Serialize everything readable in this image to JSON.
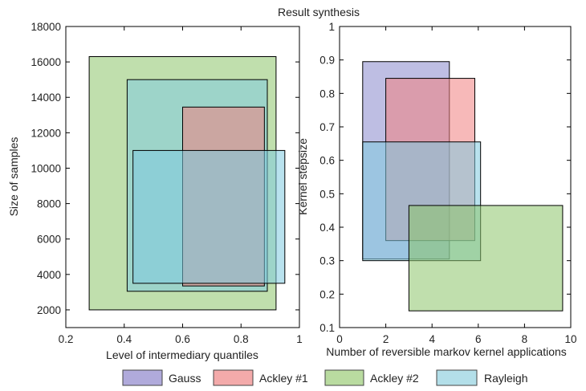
{
  "chart_data": {
    "title": "Result synthesis",
    "type": "box",
    "series_colors": {
      "Gauss": "#8888cc",
      "Ackley #1": "#f08080",
      "Ackley #2": "#8dc46a",
      "Rayleigh": "#7fcbe0"
    },
    "legend": {
      "placement": "bottom",
      "entries": [
        "Gauss",
        "Ackley #1",
        "Ackley #2",
        "Rayleigh"
      ]
    },
    "charts": [
      {
        "xlabel": "Level of intermediary quantiles",
        "ylabel": "Size of samples",
        "xlim": [
          0.2,
          1.0
        ],
        "ylim": [
          1000,
          18000
        ],
        "xticks": [
          "0.2",
          "0.4",
          "0.6",
          "0.8",
          "1"
        ],
        "yticks": [
          "2000",
          "4000",
          "6000",
          "8000",
          "10000",
          "12000",
          "14000",
          "16000",
          "18000"
        ],
        "xtick_values": [
          0.2,
          0.4,
          0.6,
          0.8,
          1.0
        ],
        "ytick_values": [
          2000,
          4000,
          6000,
          8000,
          10000,
          12000,
          14000,
          16000,
          18000
        ],
        "boxes": [
          {
            "series": "Ackley #2",
            "x": [
              0.28,
              0.92
            ],
            "y": [
              2000,
              16300
            ]
          },
          {
            "series": "Rayleigh",
            "x": [
              0.41,
              0.89
            ],
            "y": [
              3050,
              15000
            ]
          },
          {
            "series": "Ackley #1",
            "x": [
              0.6,
              0.88
            ],
            "y": [
              3350,
              13450
            ]
          },
          {
            "series": "Rayleigh",
            "x": [
              0.43,
              0.95
            ],
            "y": [
              3500,
              11000
            ]
          }
        ]
      },
      {
        "xlabel": "Number of reversible markov kernel applications",
        "ylabel": "Kernel stepsize",
        "xlim": [
          0,
          10
        ],
        "ylim": [
          0.1,
          1.0
        ],
        "xticks": [
          "0",
          "2",
          "4",
          "6",
          "8",
          "10"
        ],
        "yticks": [
          "0.1",
          "0.2",
          "0.3",
          "0.4",
          "0.5",
          "0.6",
          "0.7",
          "0.8",
          "0.9",
          "1"
        ],
        "xtick_values": [
          0,
          2,
          4,
          6,
          8,
          10
        ],
        "ytick_values": [
          0.1,
          0.2,
          0.3,
          0.4,
          0.5,
          0.6,
          0.7,
          0.8,
          0.9,
          1.0
        ],
        "boxes": [
          {
            "series": "Gauss",
            "x": [
              1.0,
              4.75
            ],
            "y": [
              0.305,
              0.895
            ]
          },
          {
            "series": "Ackley #1",
            "x": [
              2.0,
              5.85
            ],
            "y": [
              0.36,
              0.845
            ]
          },
          {
            "series": "Rayleigh",
            "x": [
              1.0,
              6.1
            ],
            "y": [
              0.3,
              0.655
            ]
          },
          {
            "series": "Ackley #2",
            "x": [
              3.0,
              9.65
            ],
            "y": [
              0.15,
              0.465
            ]
          }
        ]
      }
    ]
  }
}
